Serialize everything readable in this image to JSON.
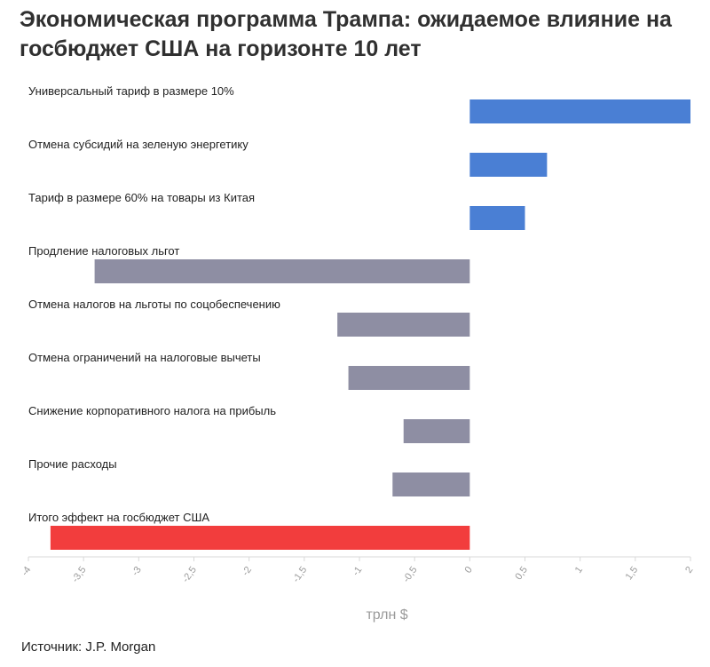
{
  "title": "Экономическая программа Трампа: ожидаемое влияние на госбюджет США на горизонте 10 лет",
  "source": "Источник: J.P. Morgan",
  "colors": {
    "positive": "#4a7fd4",
    "negative": "#8e8ea3",
    "total": "#f23d3d",
    "grid": "#d9d9d9",
    "axis_label": "#9a9a9a"
  },
  "chart_data": {
    "type": "bar",
    "orientation": "horizontal",
    "categories": [
      "Универсальный тариф в размере 10%",
      "Отмена субсидий на зеленую энергетику",
      "Тариф в размере 60% на товары из Китая",
      "Продление налоговых льгот",
      "Отмена налогов на льготы по соцобеспечению",
      "Отмена ограничений на налоговые вычеты",
      "Снижение корпоративного налога на прибыль",
      "Прочие расходы",
      "Итого эффект на госбюджет США"
    ],
    "values": [
      2.0,
      0.7,
      0.5,
      -3.4,
      -1.2,
      -1.1,
      -0.6,
      -0.7,
      -3.8
    ],
    "xlabel": "трлн $",
    "ylabel": "",
    "xlim": [
      -4,
      2
    ],
    "ticks": [
      "-4",
      "-3,5",
      "-3",
      "-2,5",
      "-2",
      "-1,5",
      "-1",
      "-0,5",
      "0",
      "0,5",
      "1",
      "1,5",
      "2"
    ],
    "grid": false,
    "legend": "none"
  }
}
